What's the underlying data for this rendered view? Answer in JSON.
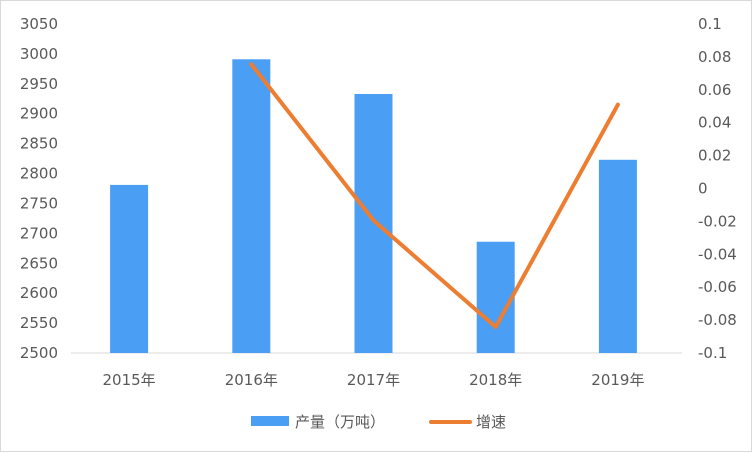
{
  "chart_data": {
    "type": "bar+line",
    "categories": [
      "2015年",
      "2016年",
      "2017年",
      "2018年",
      "2019年"
    ],
    "series": [
      {
        "name": "产量（万吨）",
        "type": "bar",
        "axis": "left",
        "color": "#4a9ff5",
        "values": [
          2781,
          2991,
          2933,
          2686,
          2823
        ]
      },
      {
        "name": "增速",
        "type": "line",
        "axis": "right",
        "color": "#ed7d31",
        "values": [
          null,
          0.0755,
          -0.0194,
          -0.0842,
          0.051
        ]
      }
    ],
    "y_left": {
      "min": 2500,
      "max": 3050,
      "step": 50,
      "ticks": [
        "2500",
        "2550",
        "2600",
        "2650",
        "2700",
        "2750",
        "2800",
        "2850",
        "2900",
        "2950",
        "3000",
        "3050"
      ]
    },
    "y_right": {
      "min": -0.1,
      "max": 0.1,
      "step": 0.02,
      "ticks": [
        "-0.1",
        "-0.08",
        "-0.06",
        "-0.04",
        "-0.02",
        "0",
        "0.02",
        "0.04",
        "0.06",
        "0.08",
        "0.1"
      ]
    },
    "grid": false,
    "legend": "bottom"
  }
}
